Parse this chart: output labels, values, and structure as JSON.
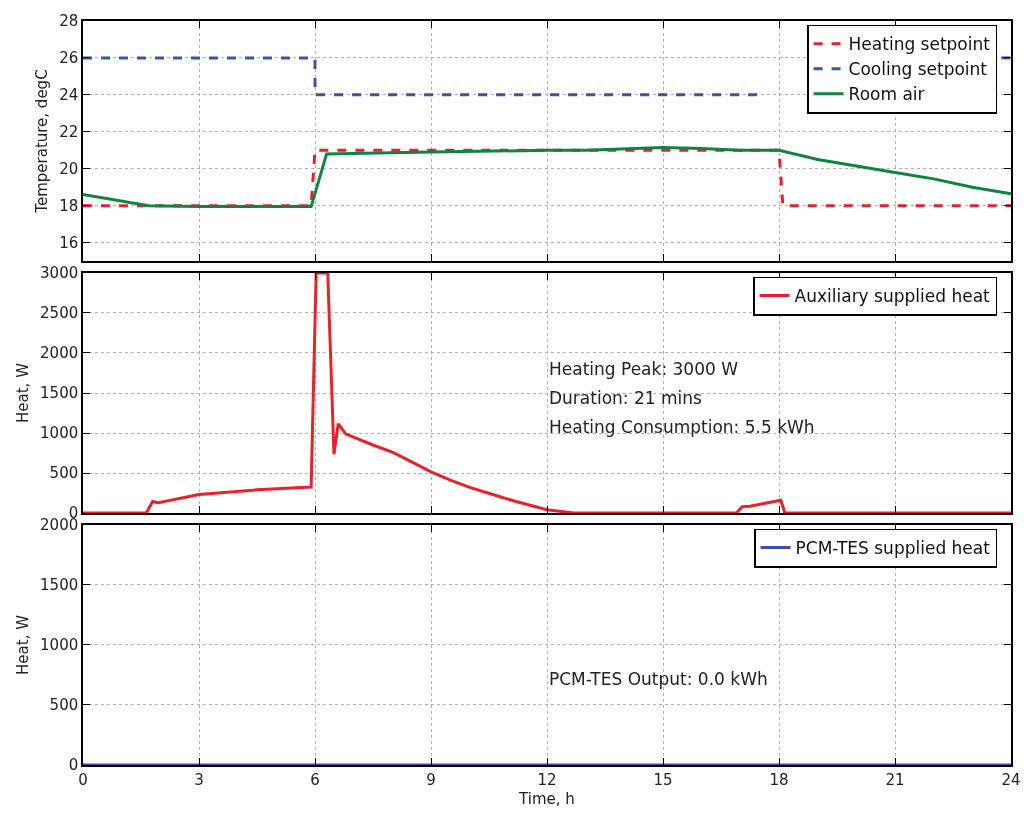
{
  "chart_data": [
    {
      "type": "line",
      "ylabel": "Temperature, degC",
      "xlim": [
        0,
        24
      ],
      "xticks": [
        0,
        3,
        6,
        9,
        12,
        15,
        18,
        21,
        24
      ],
      "ylim": [
        15,
        28
      ],
      "yticks": [
        16,
        18,
        20,
        22,
        24,
        26,
        28
      ],
      "grid": true,
      "legend": "top right",
      "tick_labels": "y",
      "series": [
        {
          "name": "Heating setpoint",
          "color": "#e8222b",
          "line_style": "dashed",
          "x": [
            0,
            5.9,
            6.0,
            18.0,
            18.1,
            24
          ],
          "values": [
            18,
            18,
            21,
            21,
            18,
            18
          ]
        },
        {
          "name": "Cooling setpoint",
          "color": "#3a55a4",
          "line_style": "dashed",
          "x": [
            0,
            6,
            6,
            17.6,
            17.7,
            23.75,
            24
          ],
          "values": [
            26,
            26,
            24,
            24,
            null,
            26,
            26
          ]
        },
        {
          "name": "Room air",
          "color": "#0e8440",
          "line_style": "solid",
          "x": [
            0,
            1.7,
            3,
            5.9,
            6.3,
            9,
            12,
            13,
            15,
            16,
            17,
            18,
            19,
            20,
            21,
            22,
            23,
            24
          ],
          "values": [
            18.6,
            18.0,
            17.95,
            17.95,
            20.8,
            20.9,
            21.0,
            21.0,
            21.15,
            21.1,
            21.0,
            21.0,
            20.5,
            20.15,
            19.8,
            19.45,
            19.0,
            18.65
          ]
        }
      ]
    },
    {
      "type": "line",
      "ylabel": "Heat, W",
      "xlim": [
        0,
        24
      ],
      "xticks": [
        0,
        3,
        6,
        9,
        12,
        15,
        18,
        21,
        24
      ],
      "ylim": [
        0,
        3000
      ],
      "yticks": [
        0,
        500,
        1000,
        1500,
        2000,
        2500,
        3000
      ],
      "grid": true,
      "legend": "top right",
      "tick_labels": "y",
      "annotations": [
        "Heating Peak: 3000 W",
        "Duration: 21 mins",
        "Heating Consumption: 5.5 kWh"
      ],
      "series": [
        {
          "name": "Auxiliary supplied heat",
          "color": "#e8222b",
          "line_style": "solid",
          "x": [
            0,
            1.64,
            1.8,
            1.95,
            3,
            4.5,
            5.9,
            6.03,
            6.33,
            6.49,
            6.6,
            6.8,
            7.5,
            8,
            8.5,
            9,
            9.5,
            10,
            10.7,
            11.2,
            12,
            12.7,
            16.9,
            17.05,
            17.25,
            18.05,
            18.15,
            24
          ],
          "values": [
            0,
            0,
            144,
            130,
            232,
            290,
            325,
            3000,
            3000,
            734,
            1115,
            986,
            850,
            760,
            640,
            515,
            410,
            320,
            216,
            144,
            40,
            0,
            0,
            80,
            85,
            160,
            0,
            0
          ]
        }
      ]
    },
    {
      "type": "line",
      "xlabel": "Time, h",
      "ylabel": "Heat, W",
      "xlim": [
        0,
        24
      ],
      "xticks": [
        0,
        3,
        6,
        9,
        12,
        15,
        18,
        21,
        24
      ],
      "ylim": [
        0,
        2000
      ],
      "yticks": [
        0,
        500,
        1000,
        1500,
        2000
      ],
      "grid": true,
      "legend": "top right",
      "annotations": [
        "PCM-TES Output: 0.0 kWh"
      ],
      "series": [
        {
          "name": "PCM-TES supplied heat",
          "color": "#3a55a4",
          "line_style": "solid",
          "x": [
            0,
            24
          ],
          "values": [
            0,
            0
          ]
        }
      ]
    }
  ]
}
